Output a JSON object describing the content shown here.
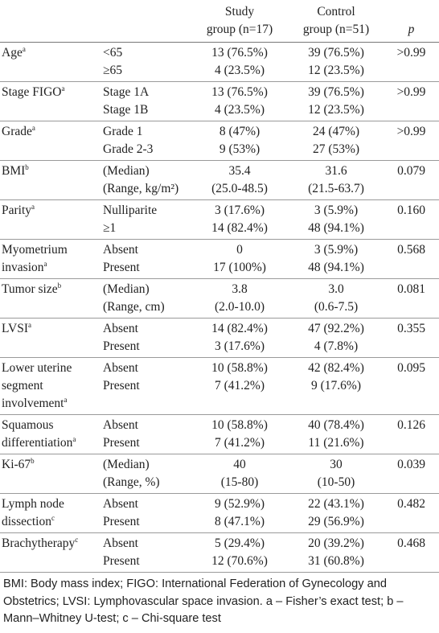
{
  "header": {
    "study": [
      "Study",
      "group (n=17)"
    ],
    "control": [
      "Control",
      "group (n=51)"
    ],
    "p": "p"
  },
  "rows": [
    {
      "var": [
        "Age"
      ],
      "sup": "a",
      "cats": [
        "<65",
        "≥65"
      ],
      "study": [
        "13 (76.5%)",
        "4 (23.5%)"
      ],
      "control": [
        "39 (76.5%)",
        "12 (23.5%)"
      ],
      "p": ">0.99"
    },
    {
      "var": [
        "Stage FIGO"
      ],
      "sup": "a",
      "cats": [
        "Stage 1A",
        "Stage 1B"
      ],
      "study": [
        "13 (76.5%)",
        "4 (23.5%)"
      ],
      "control": [
        "39 (76.5%)",
        "12 (23.5%)"
      ],
      "p": ">0.99"
    },
    {
      "var": [
        "Grade"
      ],
      "sup": "a",
      "cats": [
        "Grade 1",
        "Grade 2-3"
      ],
      "study": [
        "8 (47%)",
        "9 (53%)"
      ],
      "control": [
        "24 (47%)",
        "27 (53%)"
      ],
      "p": ">0.99"
    },
    {
      "var": [
        "BMI"
      ],
      "sup": "b",
      "cats": [
        "(Median)",
        "(Range, kg/m²)"
      ],
      "study": [
        "35.4",
        "(25.0-48.5)"
      ],
      "control": [
        "31.6",
        "(21.5-63.7)"
      ],
      "p": "0.079"
    },
    {
      "var": [
        "Parity"
      ],
      "sup": "a",
      "cats": [
        "Nulliparite",
        "≥1"
      ],
      "study": [
        "3 (17.6%)",
        "14 (82.4%)"
      ],
      "control": [
        "3 (5.9%)",
        "48 (94.1%)"
      ],
      "p": "0.160"
    },
    {
      "var": [
        "Myometrium",
        "invasion"
      ],
      "sup": "a",
      "cats": [
        "Absent",
        "Present"
      ],
      "study": [
        "0",
        "17 (100%)"
      ],
      "control": [
        "3 (5.9%)",
        "48 (94.1%)"
      ],
      "p": "0.568"
    },
    {
      "var": [
        "Tumor size"
      ],
      "sup": "b",
      "cats": [
        "(Median)",
        "(Range, cm)"
      ],
      "study": [
        "3.8",
        "(2.0-10.0)"
      ],
      "control": [
        "3.0",
        "(0.6-7.5)"
      ],
      "p": "0.081"
    },
    {
      "var": [
        "LVSI"
      ],
      "sup": "a",
      "cats": [
        "Absent",
        "Present"
      ],
      "study": [
        "14 (82.4%)",
        "3 (17.6%)"
      ],
      "control": [
        "47 (92.2%)",
        "4 (7.8%)"
      ],
      "p": "0.355"
    },
    {
      "var": [
        "Lower uterine",
        "segment",
        "involvement"
      ],
      "sup": "a",
      "cats": [
        "Absent",
        "Present"
      ],
      "study": [
        "10 (58.8%)",
        "7 (41.2%)"
      ],
      "control": [
        "42 (82.4%)",
        "9 (17.6%)"
      ],
      "p": "0.095"
    },
    {
      "var": [
        "Squamous",
        "differentiation"
      ],
      "sup": "a",
      "cats": [
        "Absent",
        "Present"
      ],
      "study": [
        "10 (58.8%)",
        "7 (41.2%)"
      ],
      "control": [
        "40 (78.4%)",
        "11 (21.6%)"
      ],
      "p": "0.126"
    },
    {
      "var": [
        "Ki-67"
      ],
      "sup": "b",
      "cats": [
        "(Median)",
        "(Range, %)"
      ],
      "study": [
        "40",
        "(15-80)"
      ],
      "control": [
        "30",
        "(10-50)"
      ],
      "p": "0.039"
    },
    {
      "var": [
        "Lymph node",
        "dissection"
      ],
      "sup": "c",
      "cats": [
        "Absent",
        "Present"
      ],
      "study": [
        "9 (52.9%)",
        "8 (47.1%)"
      ],
      "control": [
        "22 (43.1%)",
        "29 (56.9%)"
      ],
      "p": "0.482"
    },
    {
      "var": [
        "Brachytherapy"
      ],
      "sup": "c",
      "cats": [
        "Absent",
        "Present"
      ],
      "study": [
        "5 (29.4%)",
        "12 (70.6%)"
      ],
      "control": [
        "20 (39.2%)",
        "31 (60.8%)"
      ],
      "p": "0.468"
    }
  ],
  "footnote": "BMI: Body mass index; FIGO: International Federation of Gynecology and Obstetrics; LVSI: Lymphovascular space invasion. a – Fisher’s exact test; b – Mann–Whitney U-test; c – Chi-square test"
}
